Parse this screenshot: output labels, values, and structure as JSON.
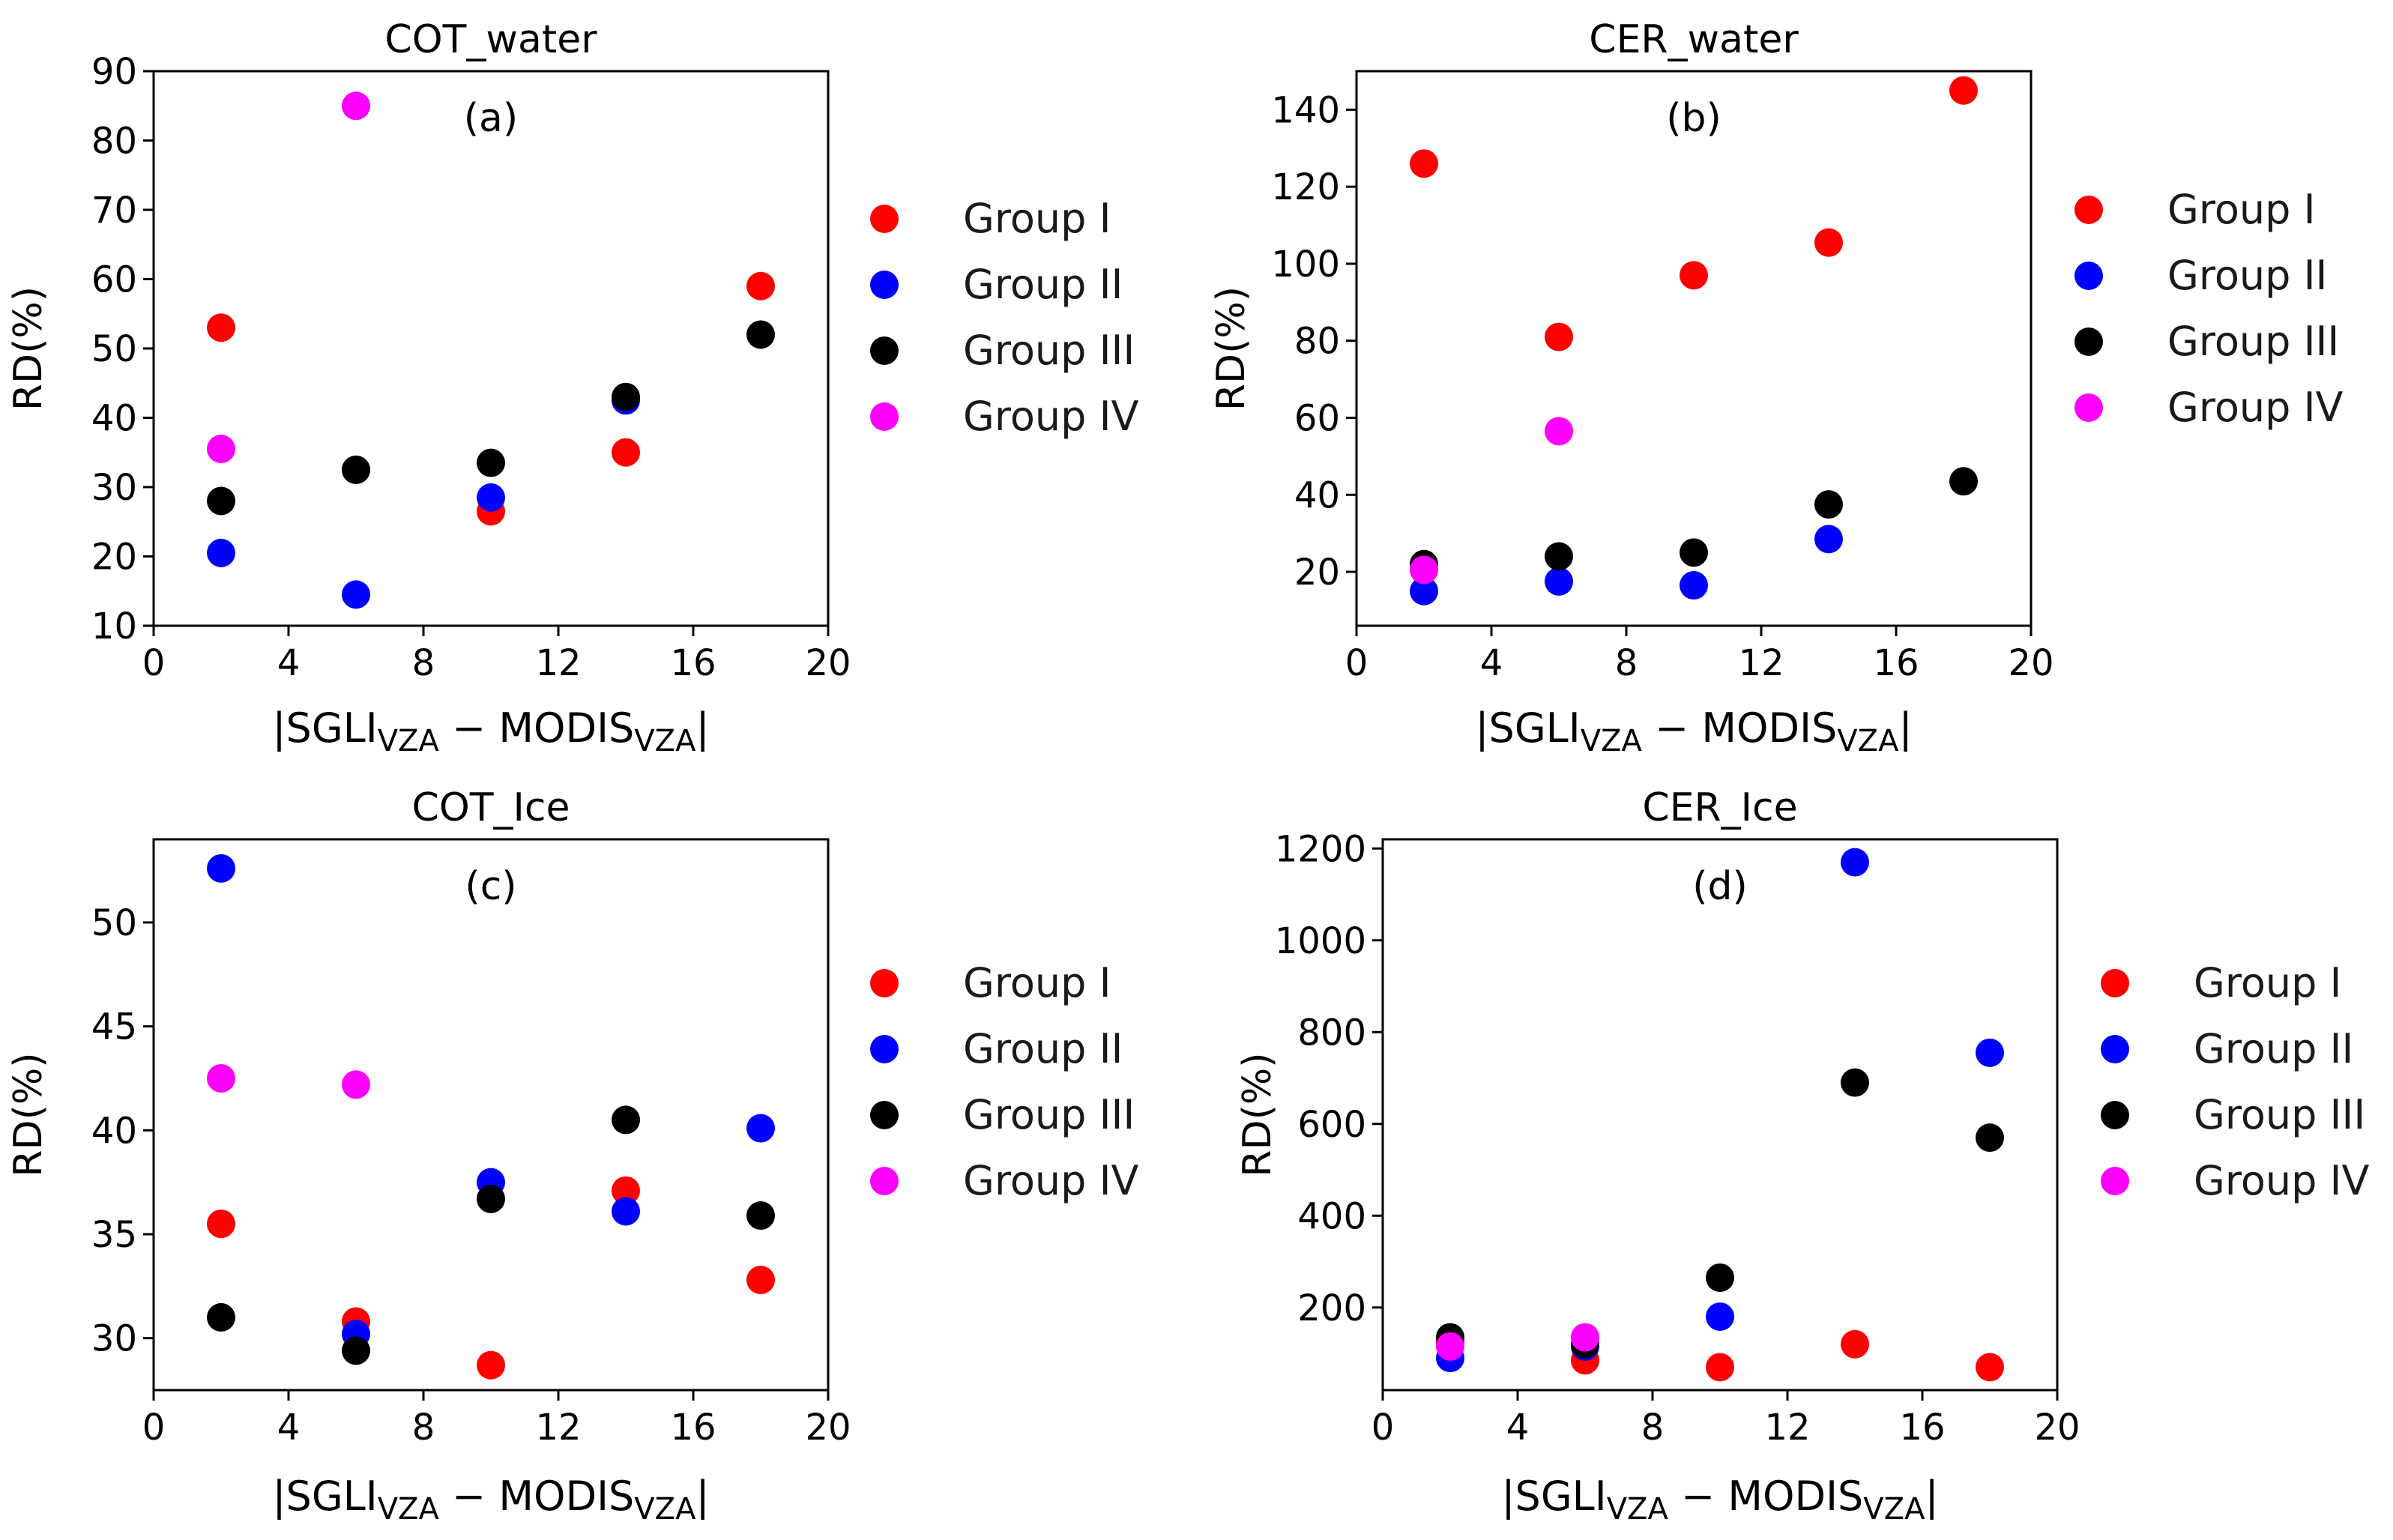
{
  "xaxis_label": {
    "prefix": "|SGLI",
    "sub1": "VZA",
    "mid": " − MODIS",
    "sub2": "VZA",
    "suffix": "|"
  },
  "chart_data": [
    {
      "type": "scatter",
      "title": "COT_water",
      "panel_label": "(a)",
      "ylabel": "RD(%)",
      "xlim": [
        0,
        20
      ],
      "ylim": [
        10,
        90
      ],
      "xticks": [
        0,
        4,
        8,
        12,
        16,
        20
      ],
      "yticks": [
        10,
        20,
        30,
        40,
        50,
        60,
        70,
        80,
        90
      ],
      "x": [
        2,
        6,
        10,
        14,
        18
      ],
      "legend": "right",
      "series": [
        {
          "name": "Group I",
          "color": "#ff0000",
          "values": [
            53,
            32.5,
            26.5,
            35,
            59
          ]
        },
        {
          "name": "Group II",
          "color": "#0000ff",
          "values": [
            20.5,
            14.5,
            28.5,
            42.5,
            null
          ]
        },
        {
          "name": "Group III",
          "color": "#000000",
          "values": [
            28,
            32.5,
            33.5,
            43,
            52
          ]
        },
        {
          "name": "Group IV",
          "color": "#ff00ff",
          "values": [
            35.5,
            85,
            null,
            null,
            null
          ]
        }
      ]
    },
    {
      "type": "scatter",
      "title": "CER_water",
      "panel_label": "(b)",
      "ylabel": "RD(%)",
      "xlim": [
        0,
        20
      ],
      "ylim": [
        6,
        150
      ],
      "xticks": [
        0,
        4,
        8,
        12,
        16,
        20
      ],
      "yticks": [
        20,
        40,
        60,
        80,
        100,
        120,
        140
      ],
      "x": [
        2,
        6,
        10,
        14,
        18
      ],
      "legend": "right",
      "series": [
        {
          "name": "Group I",
          "color": "#ff0000",
          "values": [
            126,
            81,
            97,
            105.5,
            145
          ]
        },
        {
          "name": "Group II",
          "color": "#0000ff",
          "values": [
            15,
            17.5,
            16.5,
            28.5,
            null
          ]
        },
        {
          "name": "Group III",
          "color": "#000000",
          "values": [
            22,
            24,
            25,
            37.5,
            43.5
          ]
        },
        {
          "name": "Group IV",
          "color": "#ff00ff",
          "values": [
            20.5,
            56.5,
            null,
            null,
            null
          ]
        }
      ]
    },
    {
      "type": "scatter",
      "title": "COT_Ice",
      "panel_label": "(c)",
      "ylabel": "RD(%)",
      "xlim": [
        0,
        20
      ],
      "ylim": [
        27.5,
        54
      ],
      "xticks": [
        0,
        4,
        8,
        12,
        16,
        20
      ],
      "yticks": [
        30,
        35,
        40,
        45,
        50
      ],
      "x": [
        2,
        6,
        10,
        14,
        18
      ],
      "legend": "right",
      "series": [
        {
          "name": "Group I",
          "color": "#ff0000",
          "values": [
            35.5,
            30.8,
            28.7,
            37.1,
            32.8
          ]
        },
        {
          "name": "Group II",
          "color": "#0000ff",
          "values": [
            52.6,
            30.2,
            37.5,
            36.1,
            40.1
          ]
        },
        {
          "name": "Group III",
          "color": "#000000",
          "values": [
            31,
            29.4,
            36.7,
            40.5,
            35.9
          ]
        },
        {
          "name": "Group IV",
          "color": "#ff00ff",
          "values": [
            42.5,
            42.2,
            null,
            null,
            null
          ]
        }
      ]
    },
    {
      "type": "scatter",
      "title": "CER_Ice",
      "panel_label": "(d)",
      "ylabel": "RD(%)",
      "xlim": [
        0,
        20
      ],
      "ylim": [
        20,
        1220
      ],
      "xticks": [
        0,
        4,
        8,
        12,
        16,
        20
      ],
      "yticks": [
        200,
        400,
        600,
        800,
        1000,
        1200
      ],
      "x": [
        2,
        6,
        10,
        14,
        18
      ],
      "legend": "right",
      "series": [
        {
          "name": "Group I",
          "color": "#ff0000",
          "values": [
            125,
            85,
            70,
            120,
            70
          ]
        },
        {
          "name": "Group II",
          "color": "#0000ff",
          "values": [
            90,
            115,
            180,
            1170,
            755
          ]
        },
        {
          "name": "Group III",
          "color": "#000000",
          "values": [
            135,
            120,
            265,
            690,
            570
          ]
        },
        {
          "name": "Group IV",
          "color": "#ff00ff",
          "values": [
            115,
            135,
            null,
            null,
            null
          ]
        }
      ]
    }
  ]
}
